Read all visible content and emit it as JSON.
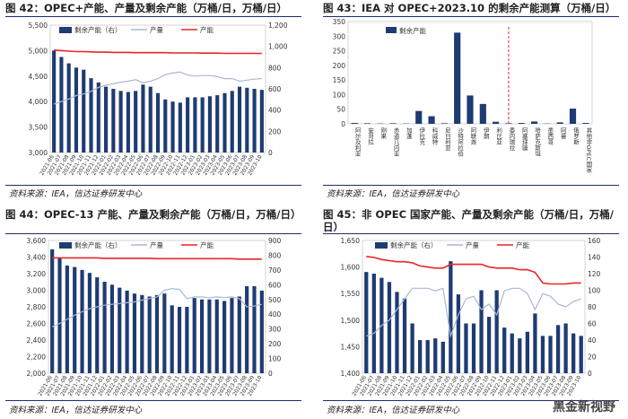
{
  "source_text": "资料来源：IEA，信达证券研发中心",
  "watermark": "黑金新视野",
  "colors": {
    "bar": "#1f3b73",
    "line_gray": "#a8b8d8",
    "line_red": "#e8252a",
    "rule": "#1f2d6e"
  },
  "chart_data": [
    {
      "id": "fig42",
      "title": "图 42：OPEC+产能、产量及剩余产能（万桶/日，万桶/日）",
      "type": "bar",
      "legend": [
        "剩余产能（右）",
        "产量",
        "产能"
      ],
      "categories": [
        "2021-06",
        "2021-07",
        "2021-08",
        "2021-09",
        "2021-10",
        "2021-11",
        "2021-12",
        "2022-01",
        "2022-02",
        "2022-03",
        "2022-04",
        "2022-05",
        "2022-06",
        "2022-07",
        "2022-08",
        "2022-09",
        "2022-10",
        "2022-11",
        "2022-12",
        "2023-01",
        "2023-02",
        "2023-03",
        "2023-04",
        "2023-05",
        "2023-06",
        "2023-07",
        "2023-08",
        "2023-09",
        "2023-10"
      ],
      "ylim_left": [
        3000,
        5500
      ],
      "yticks_left": [
        "3,000",
        "3,500",
        "4,000",
        "4,500",
        "5,000",
        "5,500"
      ],
      "ylim_right": [
        0,
        1200
      ],
      "yticks_right": [
        "0",
        "200",
        "400",
        "600",
        "800",
        "1,000",
        "1,200"
      ],
      "series": [
        {
          "name": "剩余产能（右）",
          "axis": "right",
          "kind": "bar",
          "values": [
            960,
            900,
            840,
            800,
            780,
            700,
            660,
            620,
            600,
            580,
            570,
            580,
            640,
            620,
            560,
            500,
            480,
            470,
            520,
            520,
            520,
            530,
            540,
            560,
            580,
            620,
            610,
            600,
            590
          ]
        },
        {
          "name": "产量",
          "axis": "left",
          "kind": "line",
          "values": [
            3950,
            4000,
            4050,
            4120,
            4150,
            4200,
            4280,
            4320,
            4350,
            4380,
            4400,
            4430,
            4370,
            4400,
            4450,
            4530,
            4560,
            4580,
            4520,
            4500,
            4510,
            4510,
            4490,
            4450,
            4450,
            4400,
            4420,
            4440,
            4450
          ]
        },
        {
          "name": "产能",
          "axis": "left",
          "kind": "line",
          "values": [
            5010,
            5000,
            4990,
            4980,
            4980,
            4975,
            4970,
            4970,
            4965,
            4965,
            4965,
            4960,
            4960,
            4960,
            4960,
            4960,
            4955,
            4955,
            4955,
            4955,
            4950,
            4950,
            4950,
            4945,
            4945,
            4945,
            4945,
            4945,
            4945
          ]
        }
      ]
    },
    {
      "id": "fig43",
      "title": "图 43：IEA 对 OPEC+2023.10 的剩余产能测算（万桶/日）",
      "type": "bar",
      "legend": [
        "剩余产能"
      ],
      "categories": [
        "阿尔及利亚",
        "安哥拉",
        "刚果",
        "赤道几内亚",
        "加蓬",
        "伊拉克",
        "科威特",
        "尼日利亚",
        "沙特阿拉伯",
        "阿联酋",
        "伊朗",
        "利比亚",
        "委内瑞拉",
        "阿塞拜疆",
        "哈萨克斯坦",
        "墨西哥",
        "阿曼",
        "俄罗斯",
        "其他非OPEC国家"
      ],
      "ylim": [
        0,
        350
      ],
      "yticks": [
        "0",
        "50",
        "100",
        "150",
        "200",
        "250",
        "300",
        "350"
      ],
      "series": [
        {
          "name": "剩余产能",
          "values": [
            3,
            2,
            1,
            2,
            1,
            44,
            26,
            2,
            312,
            97,
            68,
            7,
            2,
            3,
            8,
            1,
            5,
            52,
            3
          ]
        }
      ],
      "divider_after_category": 12
    },
    {
      "id": "fig44",
      "title": "图 44：OPEC-13 产能、产量及剩余产能（万桶/日，万桶/日）",
      "type": "bar",
      "legend": [
        "剩余产能（右）",
        "产量",
        "产能"
      ],
      "categories": [
        "2021-06",
        "2021-07",
        "2021-08",
        "2021-09",
        "2021-10",
        "2021-11",
        "2021-12",
        "2022-01",
        "2022-02",
        "2022-03",
        "2022-04",
        "2022-05",
        "2022-06",
        "2022-07",
        "2022-08",
        "2022-09",
        "2022-10",
        "2022-11",
        "2022-12",
        "2023-01",
        "2023-02",
        "2023-03",
        "2023-04",
        "2023-05",
        "2023-06",
        "2023-07",
        "2023-08",
        "2023-09",
        "2023-10"
      ],
      "ylim_left": [
        2000,
        3600
      ],
      "yticks_left": [
        "2,000",
        "2,200",
        "2,400",
        "2,600",
        "2,800",
        "3,000",
        "3,200",
        "3,400",
        "3,600"
      ],
      "ylim_right": [
        0,
        900
      ],
      "yticks_right": [
        "0",
        "100",
        "200",
        "300",
        "400",
        "500",
        "600",
        "700",
        "800",
        "900"
      ],
      "series": [
        {
          "name": "剩余产能（右）",
          "axis": "right",
          "kind": "bar",
          "values": [
            840,
            780,
            730,
            720,
            700,
            680,
            650,
            620,
            600,
            580,
            560,
            540,
            530,
            520,
            530,
            540,
            460,
            450,
            450,
            510,
            500,
            500,
            500,
            490,
            510,
            520,
            590,
            590,
            560
          ]
        },
        {
          "name": "产量",
          "axis": "left",
          "kind": "line",
          "values": [
            2560,
            2600,
            2650,
            2700,
            2740,
            2780,
            2800,
            2820,
            2830,
            2840,
            2850,
            2860,
            2880,
            2900,
            2920,
            3000,
            3020,
            3010,
            2900,
            2920,
            2920,
            2910,
            2920,
            2910,
            2920,
            2900,
            2800,
            2810,
            2830
          ]
        },
        {
          "name": "产能",
          "axis": "left",
          "kind": "line",
          "values": [
            3390,
            3390,
            3390,
            3390,
            3390,
            3390,
            3390,
            3385,
            3385,
            3385,
            3385,
            3385,
            3385,
            3385,
            3380,
            3380,
            3380,
            3380,
            3380,
            3380,
            3380,
            3380,
            3380,
            3380,
            3380,
            3375,
            3375,
            3375,
            3375
          ]
        }
      ]
    },
    {
      "id": "fig45",
      "title": "图 45：非 OPEC 国家产能、产量及剩余产能（万桶/日，万桶/日）",
      "type": "bar",
      "legend": [
        "剩余产能（右）",
        "产量",
        "产能"
      ],
      "categories": [
        "2021-06",
        "2021-07",
        "2021-08",
        "2021-09",
        "2021-10",
        "2021-11",
        "2021-12",
        "2022-01",
        "2022-02",
        "2022-03",
        "2022-04",
        "2022-05",
        "2022-06",
        "2022-07",
        "2022-08",
        "2022-09",
        "2022-10",
        "2022-11",
        "2022-12",
        "2023-01",
        "2023-02",
        "2023-03",
        "2023-04",
        "2023-05",
        "2023-06",
        "2023-07",
        "2023-08",
        "2023-09",
        "2023-10"
      ],
      "ylim_left": [
        1400,
        1650
      ],
      "yticks_left": [
        "1,400",
        "1,450",
        "1,500",
        "1,550",
        "1,600",
        "1,650"
      ],
      "ylim_right": [
        0,
        160
      ],
      "yticks_right": [
        "0",
        "20",
        "40",
        "60",
        "80",
        "100",
        "120",
        "140",
        "160"
      ],
      "series": [
        {
          "name": "剩余产能（右）",
          "axis": "right",
          "kind": "bar",
          "values": [
            122,
            120,
            115,
            110,
            98,
            90,
            60,
            40,
            40,
            42,
            38,
            135,
            95,
            60,
            60,
            100,
            68,
            100,
            55,
            48,
            42,
            50,
            72,
            45,
            45,
            58,
            60,
            48,
            45
          ]
        },
        {
          "name": "产量",
          "axis": "left",
          "kind": "line",
          "values": [
            1470,
            1475,
            1490,
            1500,
            1520,
            1540,
            1560,
            1560,
            1560,
            1555,
            1560,
            1470,
            1510,
            1540,
            1545,
            1520,
            1530,
            1510,
            1555,
            1560,
            1560,
            1550,
            1520,
            1550,
            1545,
            1530,
            1525,
            1535,
            1540
          ]
        },
        {
          "name": "产能",
          "axis": "left",
          "kind": "line",
          "values": [
            1620,
            1618,
            1614,
            1612,
            1610,
            1610,
            1608,
            1602,
            1600,
            1598,
            1598,
            1605,
            1605,
            1605,
            1605,
            1605,
            1600,
            1598,
            1598,
            1598,
            1595,
            1595,
            1590,
            1570,
            1568,
            1568,
            1568,
            1570,
            1570
          ]
        }
      ]
    }
  ]
}
